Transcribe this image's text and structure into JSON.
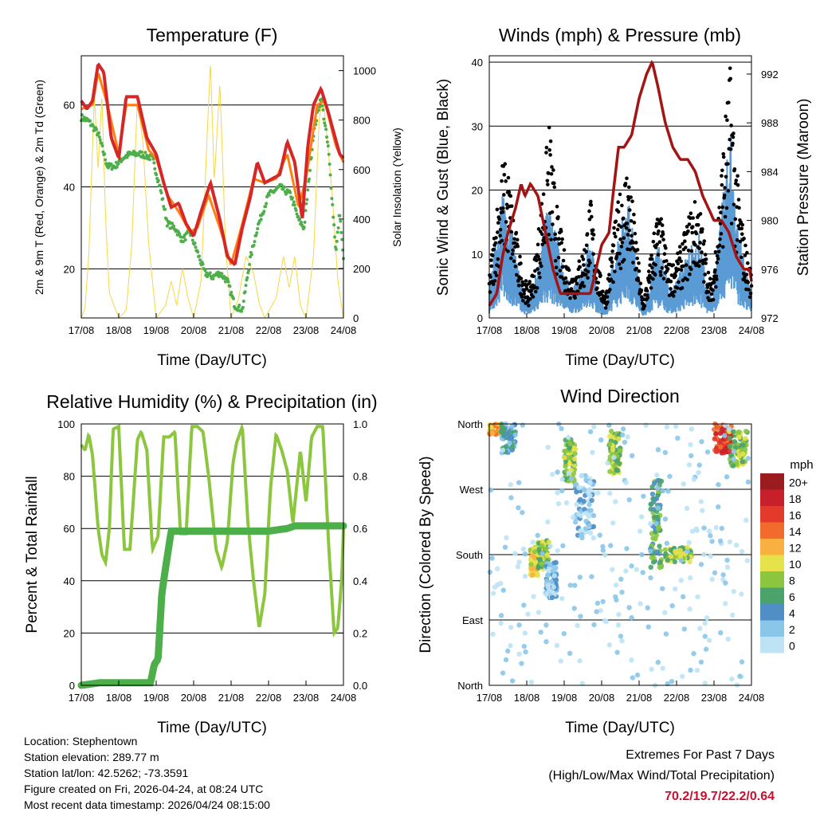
{
  "colors": {
    "temp2m": "#d62728",
    "temp9m": "#ff7f0e",
    "dew": "#4daf4a",
    "solar": "#f6d743",
    "wind": "#5b9bd5",
    "gust": "#000000",
    "pressure": "#a31515",
    "rh": "#8cc63f",
    "precip": "#4daf4a",
    "extremes": "#c8102e"
  },
  "panels": {
    "temperature": {
      "title": "Temperature (F)",
      "ylabel_left": "2m & 9m T (Red, Orange) & 2m Td (Green)",
      "ylabel_right": "Solar Insolation (Yellow)",
      "xlabel": "Time (Day/UTC)",
      "y_ticks": [
        "20",
        "40",
        "60"
      ],
      "y2_ticks": [
        "0",
        "200",
        "400",
        "600",
        "800",
        "1000"
      ]
    },
    "winds": {
      "title": "Winds (mph) & Pressure (mb)",
      "ylabel_left": "Sonic Wind & Gust (Blue, Black)",
      "ylabel_right": "Station Pressure (Maroon)",
      "xlabel": "Time (Day/UTC)",
      "y_ticks": [
        "0",
        "10",
        "20",
        "30",
        "40"
      ],
      "y2_ticks": [
        "972",
        "976",
        "980",
        "984",
        "988",
        "992"
      ]
    },
    "humidity": {
      "title": "Relative Humidity (%) & Precipitation (in)",
      "ylabel_left": "Percent & Total Rainfall",
      "xlabel": "Time (Day/UTC)",
      "y_ticks": [
        "0",
        "20",
        "40",
        "60",
        "80",
        "100"
      ],
      "y2_ticks": [
        "0.0",
        "0.2",
        "0.4",
        "0.6",
        "0.8",
        "1.0"
      ]
    },
    "direction": {
      "title": "Wind Direction",
      "ylabel_left": "Direction (Colored By Speed)",
      "xlabel": "Time (Day/UTC)",
      "y_ticks": [
        "North",
        "East",
        "South",
        "West",
        "North"
      ],
      "legend_title": "mph",
      "legend_labels": [
        "0",
        "2",
        "4",
        "6",
        "8",
        "10",
        "12",
        "14",
        "16",
        "18",
        "20+"
      ],
      "legend_colors": [
        "#bde3f5",
        "#8ac6ea",
        "#4f8fc6",
        "#4aa36a",
        "#8cc63f",
        "#e6e24a",
        "#f9b03e",
        "#f26b2c",
        "#e23a2b",
        "#c8202a",
        "#9b1c1f"
      ]
    }
  },
  "x_ticks": [
    "17/08",
    "18/08",
    "19/08",
    "20/08",
    "21/08",
    "22/08",
    "23/08",
    "24/08"
  ],
  "info": {
    "location": "Location: Stephentown",
    "elevation": "Station elevation: 289.77 m",
    "latlon": "Station lat/lon: 42.5262; -73.3591",
    "created": "Figure created on Fri, 2026-04-24, at 08:24 UTC",
    "recent": "Most recent data timestamp: 2026/04/24 08:15:00"
  },
  "extremes": {
    "line1": "Extremes For Past 7 Days",
    "line2": "(High/Low/Max Wind/Total Precipitation)",
    "values": "70.2/19.7/22.2/0.64"
  },
  "chart_data": [
    {
      "type": "line",
      "title": "Temperature (F)",
      "xlabel": "Time (Day/UTC)",
      "ylabel": "2m & 9m T (Red, Orange) & 2m Td (Green)",
      "y2label": "Solar Insolation (Yellow)",
      "ylim": [
        8,
        72
      ],
      "y2lim": [
        0,
        1060
      ],
      "xlim": [
        0,
        7
      ],
      "series": [
        {
          "name": "2m T",
          "x": [
            0,
            0.15,
            0.3,
            0.45,
            0.6,
            0.8,
            1.0,
            1.2,
            1.5,
            1.75,
            2.0,
            2.2,
            2.4,
            2.6,
            2.8,
            3.0,
            3.2,
            3.45,
            3.7,
            3.9,
            4.1,
            4.3,
            4.5,
            4.7,
            4.9,
            5.1,
            5.3,
            5.5,
            5.7,
            5.9,
            6.05,
            6.2,
            6.4,
            6.6,
            6.75,
            6.9,
            7.0
          ],
          "y": [
            61,
            59,
            61,
            70,
            68,
            52,
            47,
            62,
            62,
            52,
            48,
            41,
            35,
            36,
            31,
            28,
            34,
            41,
            32,
            23,
            21,
            30,
            37,
            46,
            41,
            42,
            43,
            51,
            46,
            32,
            50,
            60,
            64,
            58,
            53,
            48,
            47
          ]
        },
        {
          "name": "9m T",
          "x": [
            0,
            0.3,
            0.45,
            0.7,
            1.0,
            1.2,
            1.5,
            1.8,
            2.0,
            2.3,
            2.6,
            2.9,
            3.1,
            3.4,
            3.7,
            4.0,
            4.3,
            4.6,
            4.9,
            5.2,
            5.5,
            5.8,
            6.0,
            6.3,
            6.5,
            6.8,
            7.0
          ],
          "y": [
            59,
            60,
            68,
            60,
            48,
            60,
            60,
            49,
            47,
            38,
            34,
            29,
            30,
            38,
            30,
            21,
            31,
            42,
            41,
            42,
            48,
            35,
            42,
            60,
            61,
            50,
            46
          ]
        },
        {
          "name": "2m Td",
          "x": [
            0,
            0.2,
            0.45,
            0.7,
            0.9,
            1.1,
            1.3,
            1.6,
            1.9,
            2.1,
            2.3,
            2.5,
            2.7,
            2.9,
            3.1,
            3.3,
            3.5,
            3.7,
            3.9,
            4.1,
            4.3,
            4.5,
            4.7,
            5.0,
            5.3,
            5.6,
            5.8,
            5.95,
            6.2,
            6.4,
            6.6,
            6.8,
            6.9,
            7.0
          ],
          "y": [
            57,
            56,
            53,
            45,
            45,
            47,
            48,
            48,
            47,
            40,
            31,
            30,
            27,
            29,
            24,
            19,
            18,
            19,
            17,
            11,
            10,
            22,
            30,
            38,
            40,
            38,
            32,
            30,
            53,
            62,
            49,
            24,
            34,
            22
          ]
        },
        {
          "name": "Solar Insolation",
          "axis": "y2",
          "x": [
            0,
            0.1,
            0.2,
            0.35,
            0.45,
            0.55,
            0.65,
            0.75,
            1.0,
            1.2,
            1.35,
            1.5,
            1.65,
            1.8,
            2.0,
            2.25,
            2.4,
            2.55,
            2.7,
            2.85,
            3.0,
            3.2,
            3.35,
            3.45,
            3.55,
            3.7,
            3.85,
            4.0,
            4.2,
            4.4,
            4.6,
            4.75,
            4.9,
            5.2,
            5.4,
            5.55,
            5.7,
            5.85,
            6.0,
            6.2,
            6.35,
            6.45,
            6.55,
            6.7,
            6.85,
            7.0
          ],
          "y": [
            0,
            40,
            250,
            900,
            600,
            900,
            400,
            100,
            0,
            30,
            300,
            900,
            700,
            300,
            0,
            50,
            150,
            50,
            200,
            80,
            0,
            150,
            700,
            1040,
            550,
            950,
            300,
            0,
            80,
            250,
            180,
            60,
            0,
            80,
            250,
            120,
            250,
            50,
            0,
            250,
            800,
            900,
            750,
            500,
            150,
            0
          ]
        }
      ]
    },
    {
      "type": "scatter",
      "title": "Winds (mph) & Pressure (mb)",
      "xlabel": "Time (Day/UTC)",
      "ylabel": "Sonic Wind & Gust (Blue, Black)",
      "y2label": "Station Pressure (Maroon)",
      "ylim": [
        0,
        41
      ],
      "y2lim": [
        972,
        993.5
      ],
      "xlim": [
        0,
        7
      ],
      "series": [
        {
          "name": "Sonic Wind",
          "x": [
            0,
            0.1,
            0.2,
            0.35,
            0.5,
            0.7,
            0.9,
            1.05,
            1.25,
            1.4,
            1.6,
            1.8,
            2.0,
            2.2,
            2.35,
            2.55,
            2.7,
            2.9,
            3.1,
            3.3,
            3.5,
            3.7,
            3.9,
            4.1,
            4.25,
            4.45,
            4.6,
            4.8,
            5.0,
            5.2,
            5.4,
            5.6,
            5.8,
            5.95,
            6.1,
            6.3,
            6.45,
            6.6,
            6.8,
            7.0
          ],
          "y": [
            3,
            6,
            9,
            14,
            12,
            7,
            3,
            2,
            5,
            9,
            12,
            9,
            5,
            3,
            4,
            6,
            9,
            3,
            1,
            6,
            10,
            13,
            7,
            1,
            3,
            8,
            7,
            3,
            4,
            6,
            8,
            9,
            4,
            2,
            8,
            15,
            20,
            12,
            6,
            3
          ]
        },
        {
          "name": "Gust",
          "x": [
            0,
            0.1,
            0.2,
            0.35,
            0.5,
            0.7,
            0.9,
            1.05,
            1.25,
            1.4,
            1.6,
            1.8,
            2.0,
            2.2,
            2.35,
            2.55,
            2.7,
            2.9,
            3.1,
            3.3,
            3.5,
            3.7,
            3.9,
            4.1,
            4.25,
            4.45,
            4.6,
            4.8,
            5.0,
            5.2,
            5.4,
            5.6,
            5.8,
            5.95,
            6.1,
            6.3,
            6.45,
            6.6,
            6.8,
            7.0
          ],
          "y": [
            6,
            10,
            15,
            21,
            20,
            12,
            6,
            4,
            9,
            16,
            26,
            15,
            9,
            6,
            7,
            10,
            16,
            7,
            3,
            11,
            17,
            21,
            12,
            2,
            6,
            14,
            13,
            7,
            8,
            11,
            15,
            16,
            8,
            4,
            14,
            27,
            34,
            20,
            11,
            6
          ]
        },
        {
          "name": "Station Pressure",
          "axis": "y2",
          "x": [
            0,
            0.2,
            0.35,
            0.5,
            0.7,
            0.85,
            0.95,
            1.1,
            1.3,
            1.5,
            1.7,
            1.9,
            2.1,
            2.3,
            2.5,
            2.7,
            2.85,
            3.0,
            3.2,
            3.3,
            3.45,
            3.6,
            3.8,
            4.0,
            4.2,
            4.35,
            4.5,
            4.7,
            4.9,
            5.1,
            5.3,
            5.5,
            5.7,
            5.85,
            6.0,
            6.2,
            6.4,
            6.6,
            6.8,
            6.95,
            7.0
          ],
          "y": [
            973,
            974,
            977,
            979,
            981,
            983,
            982,
            983,
            982,
            979,
            976,
            974,
            974,
            974,
            974,
            974,
            976,
            978,
            979,
            982,
            986,
            986,
            987,
            990,
            992,
            993,
            991,
            988,
            986,
            985,
            985,
            984,
            982,
            981,
            980,
            980,
            979,
            977,
            976,
            976,
            975
          ]
        }
      ]
    },
    {
      "type": "line",
      "title": "Relative Humidity (%) & Precipitation (in)",
      "xlabel": "Time (Day/UTC)",
      "ylabel": "Percent & Total Rainfall",
      "ylim": [
        0,
        100
      ],
      "y2lim": [
        0,
        1.0
      ],
      "xlim": [
        0,
        7
      ],
      "series": [
        {
          "name": "Relative Humidity",
          "x": [
            0,
            0.1,
            0.2,
            0.3,
            0.45,
            0.55,
            0.65,
            0.75,
            0.85,
            1.0,
            1.15,
            1.3,
            1.5,
            1.6,
            1.75,
            1.9,
            2.05,
            2.2,
            2.35,
            2.5,
            2.65,
            2.8,
            2.95,
            3.1,
            3.25,
            3.4,
            3.6,
            3.75,
            3.9,
            4.05,
            4.15,
            4.3,
            4.45,
            4.6,
            4.75,
            4.9,
            5.05,
            5.2,
            5.35,
            5.5,
            5.65,
            5.85,
            6.0,
            6.15,
            6.3,
            6.45,
            6.6,
            6.75,
            6.85,
            6.95,
            7.0
          ],
          "y": [
            92,
            90,
            96,
            88,
            60,
            50,
            47,
            60,
            98,
            99,
            52,
            52,
            94,
            97,
            90,
            52,
            57,
            95,
            95,
            97,
            58,
            58,
            99,
            99,
            97,
            80,
            52,
            45,
            55,
            85,
            93,
            99,
            62,
            40,
            22,
            35,
            75,
            96,
            90,
            82,
            62,
            90,
            70,
            95,
            99,
            99,
            55,
            20,
            22,
            40,
            60
          ]
        },
        {
          "name": "Total Precipitation",
          "axis": "y2",
          "x": [
            0,
            0.5,
            1.0,
            1.5,
            1.85,
            1.95,
            2.05,
            2.15,
            2.25,
            2.4,
            2.5,
            2.6,
            3.0,
            3.5,
            4.0,
            4.5,
            5.0,
            5.5,
            5.7,
            6.0,
            6.5,
            7.0
          ],
          "y": [
            0,
            0.01,
            0.01,
            0.01,
            0.01,
            0.08,
            0.1,
            0.35,
            0.45,
            0.59,
            0.59,
            0.59,
            0.59,
            0.59,
            0.59,
            0.59,
            0.59,
            0.6,
            0.61,
            0.61,
            0.61,
            0.61
          ]
        }
      ]
    },
    {
      "type": "scatter",
      "title": "Wind Direction",
      "xlabel": "Time (Day/UTC)",
      "ylabel": "Direction (Colored By Speed)",
      "ylim": [
        0,
        360
      ],
      "xlim": [
        0,
        7
      ],
      "note": "direction: 0=North, 90=East, 180=South, 270=West, 360=North; color by speed in mph",
      "clusters": [
        {
          "x": [
            0.0,
            0.3
          ],
          "dir": [
            345,
            360
          ],
          "speed": 12
        },
        {
          "x": [
            0.3,
            0.7
          ],
          "dir": [
            320,
            360
          ],
          "speed": 4
        },
        {
          "x": [
            1.1,
            1.3
          ],
          "dir": [
            150,
            190
          ],
          "speed": 10
        },
        {
          "x": [
            1.3,
            1.6
          ],
          "dir": [
            160,
            200
          ],
          "speed": 8
        },
        {
          "x": [
            1.5,
            1.8
          ],
          "dir": [
            120,
            170
          ],
          "speed": 2
        },
        {
          "x": [
            2.0,
            2.3
          ],
          "dir": [
            280,
            340
          ],
          "speed": 8
        },
        {
          "x": [
            2.3,
            2.8
          ],
          "dir": [
            200,
            290
          ],
          "speed": 2
        },
        {
          "x": [
            3.2,
            3.5
          ],
          "dir": [
            290,
            350
          ],
          "speed": 8
        },
        {
          "x": [
            4.3,
            4.6
          ],
          "dir": [
            160,
            290
          ],
          "speed": 6
        },
        {
          "x": [
            4.7,
            5.4
          ],
          "dir": [
            170,
            190
          ],
          "speed": 8
        },
        {
          "x": [
            6.0,
            6.5
          ],
          "dir": [
            320,
            360
          ],
          "speed": 16
        },
        {
          "x": [
            6.4,
            6.9
          ],
          "dir": [
            300,
            350
          ],
          "speed": 8
        },
        {
          "x": [
            0.0,
            7.0
          ],
          "dir": [
            0,
            360
          ],
          "speed": 1
        }
      ]
    }
  ]
}
